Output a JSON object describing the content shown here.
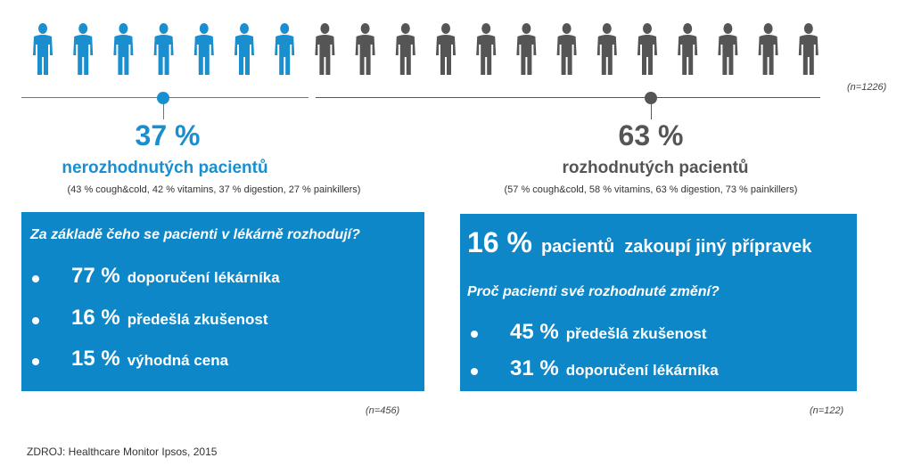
{
  "colors": {
    "blue": "#1a8fd0",
    "gray": "#555555",
    "box_blue": "#0d87c7"
  },
  "people": {
    "undecided_count": 7,
    "decided_count": 13
  },
  "chart_data": {
    "type": "pictograph",
    "n_total": "(n=1226)",
    "groups": [
      {
        "percent": "37 %",
        "label": "nerozhodnutých pacientů",
        "value": 37
      },
      {
        "percent": "63 %",
        "label": "rozhodnutých pacientů",
        "value": 63
      }
    ]
  },
  "left": {
    "percent": "37 %",
    "label": "nerozhodnutých pacientů",
    "detail": "(43 % cough&cold, 42 % vitamins, 37 % digestion, 27 % painkillers)",
    "box": {
      "question": "Za základě čeho se pacienti v lékárně rozhodují?",
      "items": [
        {
          "pct": "77 %",
          "text": "doporučení lékárníka"
        },
        {
          "pct": "16 %",
          "text": "předešlá zkušenost"
        },
        {
          "pct": "15 %",
          "text": "výhodná cena"
        }
      ]
    },
    "n": "(n=456)"
  },
  "right": {
    "percent": "63 %",
    "label": "rozhodnutých pacientů",
    "detail": "(57 % cough&cold, 58 % vitamins, 63 % digestion, 73 % painkillers)",
    "box": {
      "headline_pct": "16 %",
      "headline_text": "pacientů  zakoupí jiný přípravek",
      "question": "Proč pacienti své rozhodnuté změní?",
      "items": [
        {
          "pct": "45 %",
          "text": "předešlá zkušenost"
        },
        {
          "pct": "31 %",
          "text": "doporučení lékárníka"
        }
      ]
    },
    "n": "(n=122)"
  },
  "n_total": "(n=1226)",
  "source": "ZDROJ: Healthcare Monitor Ipsos, 2015"
}
